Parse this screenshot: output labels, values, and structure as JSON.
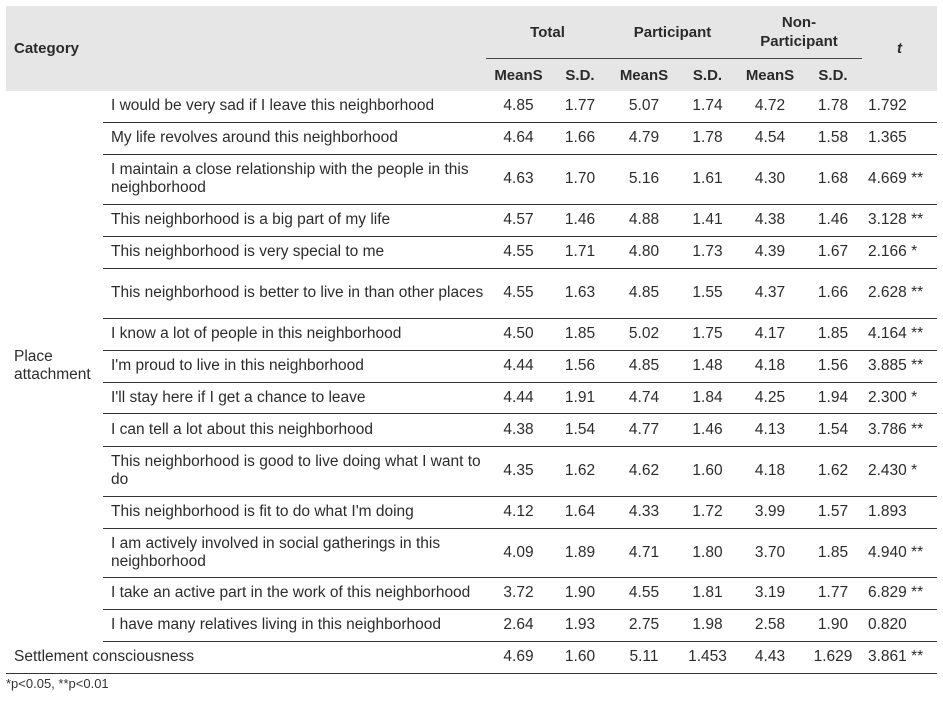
{
  "headers": {
    "category": "Category",
    "total": "Total",
    "participant": "Participant",
    "non_participant_1": "Non-",
    "non_participant_2": "Participant",
    "t": "t",
    "mean": "MeanS",
    "sd": "S.D."
  },
  "category_label_1": "Place",
  "category_label_2": "attachment",
  "rows": [
    {
      "item": "I would be very sad if I leave this neighborhood",
      "tm": "4.85",
      "tsd": "1.77",
      "pm": "5.07",
      "psd": "1.74",
      "nm": "4.72",
      "nsd": "1.78",
      "t": "1.792"
    },
    {
      "item": "My life revolves around this neighborhood",
      "tm": "4.64",
      "tsd": "1.66",
      "pm": "4.79",
      "psd": "1.78",
      "nm": "4.54",
      "nsd": "1.58",
      "t": "1.365"
    },
    {
      "item": "I maintain a close relationship with the people in this neighborhood",
      "tm": "4.63",
      "tsd": "1.70",
      "pm": "5.16",
      "psd": "1.61",
      "nm": "4.30",
      "nsd": "1.68",
      "t": "4.669 **"
    },
    {
      "item": "This neighborhood is a big part of my life",
      "tm": "4.57",
      "tsd": "1.46",
      "pm": "4.88",
      "psd": "1.41",
      "nm": "4.38",
      "nsd": "1.46",
      "t": "3.128 **"
    },
    {
      "item": "This neighborhood is very special to me",
      "tm": "4.55",
      "tsd": "1.71",
      "pm": "4.80",
      "psd": "1.73",
      "nm": "4.39",
      "nsd": "1.67",
      "t": "2.166 *"
    },
    {
      "item": "This neighborhood is better to live in than other places",
      "tm": "4.55",
      "tsd": "1.63",
      "pm": "4.85",
      "psd": "1.55",
      "nm": "4.37",
      "nsd": "1.66",
      "t": "2.628 **"
    },
    {
      "item": "I know a lot of people in this neighborhood",
      "tm": "4.50",
      "tsd": "1.85",
      "pm": "5.02",
      "psd": "1.75",
      "nm": "4.17",
      "nsd": "1.85",
      "t": "4.164 **"
    },
    {
      "item": "I'm proud to live in this neighborhood",
      "tm": "4.44",
      "tsd": "1.56",
      "pm": "4.85",
      "psd": "1.48",
      "nm": "4.18",
      "nsd": "1.56",
      "t": "3.885 **"
    },
    {
      "item": "I'll stay here if I get a chance to leave",
      "tm": "4.44",
      "tsd": "1.91",
      "pm": "4.74",
      "psd": "1.84",
      "nm": "4.25",
      "nsd": "1.94",
      "t": "2.300 *"
    },
    {
      "item": "I can tell a lot about this neighborhood",
      "tm": "4.38",
      "tsd": "1.54",
      "pm": "4.77",
      "psd": "1.46",
      "nm": "4.13",
      "nsd": "1.54",
      "t": "3.786 **"
    },
    {
      "item": "This neighborhood is good to live doing what I want to do",
      "tm": "4.35",
      "tsd": "1.62",
      "pm": "4.62",
      "psd": "1.60",
      "nm": "4.18",
      "nsd": "1.62",
      "t": "2.430 *"
    },
    {
      "item": "This neighborhood is fit to do what I'm doing",
      "tm": "4.12",
      "tsd": "1.64",
      "pm": "4.33",
      "psd": "1.72",
      "nm": "3.99",
      "nsd": "1.57",
      "t": "1.893"
    },
    {
      "item": "I am actively involved in social gatherings in this neighborhood",
      "tm": "4.09",
      "tsd": "1.89",
      "pm": "4.71",
      "psd": "1.80",
      "nm": "3.70",
      "nsd": "1.85",
      "t": "4.940 **"
    },
    {
      "item": "I take an active part in the work of this neighborhood",
      "tm": "3.72",
      "tsd": "1.90",
      "pm": "4.55",
      "psd": "1.81",
      "nm": "3.19",
      "nsd": "1.77",
      "t": "6.829 **"
    },
    {
      "item": "I have many relatives living in this neighborhood",
      "tm": "2.64",
      "tsd": "1.93",
      "pm": "2.75",
      "psd": "1.98",
      "nm": "2.58",
      "nsd": "1.90",
      "t": "0.820"
    }
  ],
  "settlement": {
    "label": "Settlement consciousness",
    "tm": "4.69",
    "tsd": "1.60",
    "pm": "5.11",
    "psd": "1.453",
    "nm": "4.43",
    "nsd": "1.629",
    "t": "3.861 **"
  },
  "note": "*p<0.05, **p<0.01"
}
